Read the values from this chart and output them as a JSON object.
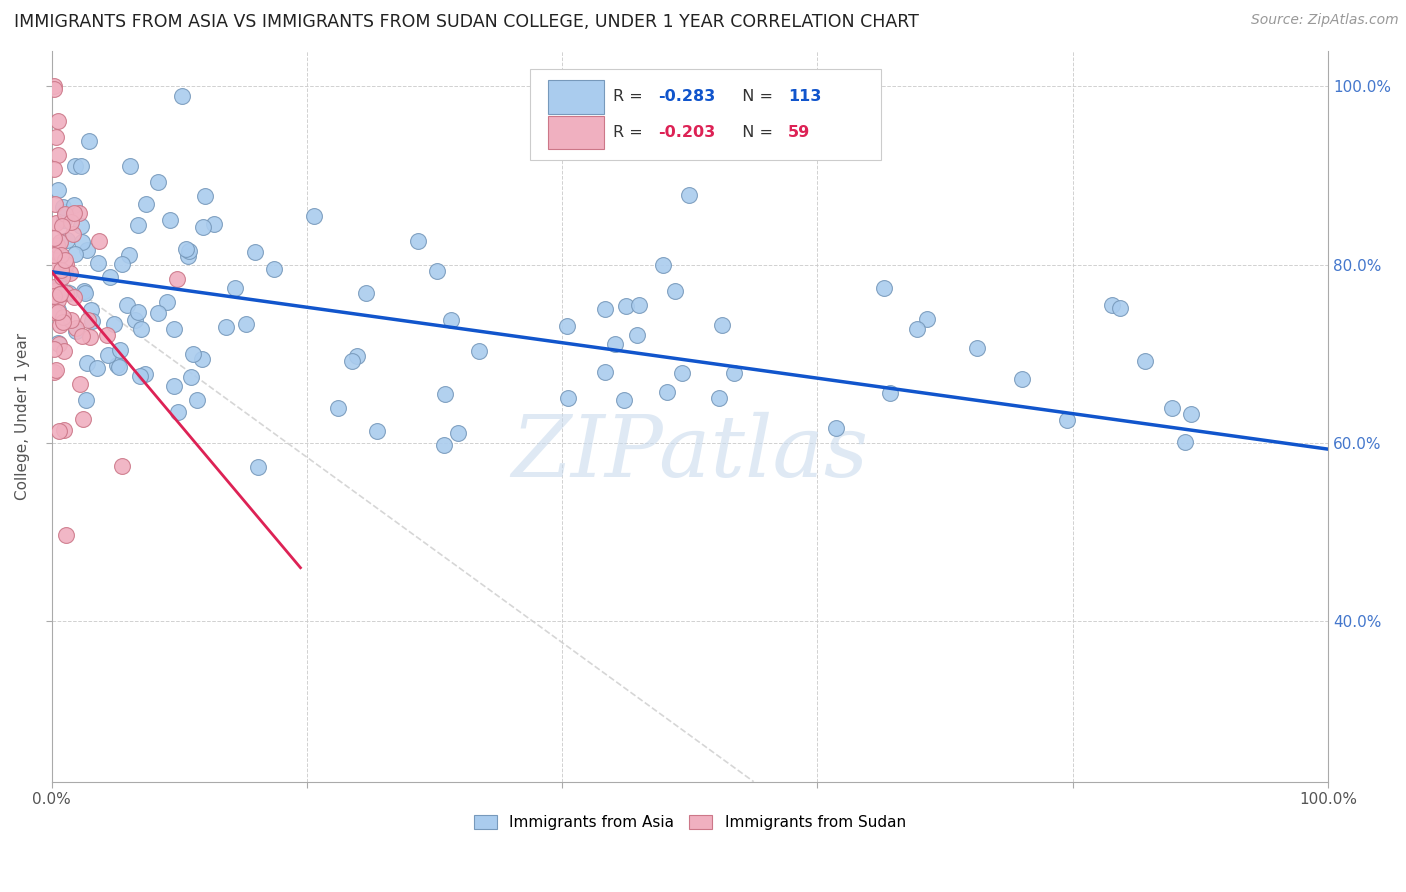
{
  "title": "IMMIGRANTS FROM ASIA VS IMMIGRANTS FROM SUDAN COLLEGE, UNDER 1 YEAR CORRELATION CHART",
  "source": "Source: ZipAtlas.com",
  "ylabel": "College, Under 1 year",
  "xlim": [
    0.0,
    1.0
  ],
  "ylim": [
    0.22,
    1.04
  ],
  "x_ticks": [
    0.0,
    0.2,
    0.4,
    0.6,
    0.8,
    1.0
  ],
  "x_tick_labels": [
    "0.0%",
    "",
    "",
    "",
    "",
    "100.0%"
  ],
  "y_ticks": [
    0.4,
    0.6,
    0.8,
    1.0
  ],
  "y_tick_labels_right": [
    "40.0%",
    "60.0%",
    "80.0%",
    "100.0%"
  ],
  "asia_color": "#aaccee",
  "sudan_color": "#f0b0c0",
  "asia_edge_color": "#7799bb",
  "sudan_edge_color": "#cc7788",
  "trendline_asia_color": "#1155cc",
  "trendline_sudan_color": "#dd2255",
  "trendline_diagonal_color": "#cccccc",
  "background_color": "#ffffff",
  "watermark": "ZIPatlas",
  "asia_trend_x": [
    0.0,
    1.0
  ],
  "asia_trend_y": [
    0.792,
    0.593
  ],
  "sudan_trend_x": [
    0.0,
    0.195
  ],
  "sudan_trend_y": [
    0.792,
    0.46
  ],
  "diag_trend_x": [
    0.0,
    0.55
  ],
  "diag_trend_y": [
    0.792,
    0.22
  ]
}
